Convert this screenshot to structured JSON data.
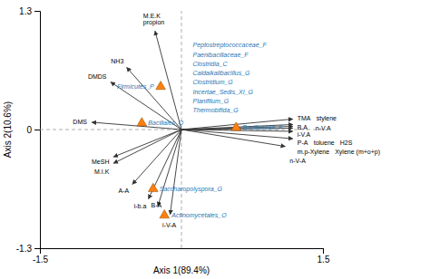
{
  "chart_data": {
    "type": "biplot",
    "xlabel": "Axis 1(89.4%)",
    "ylabel": "Axis 2(10.6%)",
    "xlim": [
      -1.5,
      1.5
    ],
    "ylim": [
      -1.3,
      1.3
    ],
    "xticks": [
      -1.5,
      1.5
    ],
    "yticks": [
      -1.3,
      0,
      1.3
    ],
    "crosshair": {
      "x": 0,
      "y": 0
    },
    "arrows": [
      {
        "labels": [
          "M.E.K\npropion"
        ],
        "x": -0.28,
        "y": 1.08
      },
      {
        "labels": [
          "NH3"
        ],
        "x": -0.58,
        "y": 0.68
      },
      {
        "labels": [
          "DMDS"
        ],
        "x": -0.75,
        "y": 0.52
      },
      {
        "labels": [
          "DMS"
        ],
        "x": -0.95,
        "y": 0.08
      },
      {
        "labels": [
          "MeSH"
        ],
        "x": -0.72,
        "y": -0.3
      },
      {
        "labels": [
          "M.I.K"
        ],
        "x": -0.72,
        "y": -0.37
      },
      {
        "labels": [
          "A-A"
        ],
        "x": -0.52,
        "y": -0.6
      },
      {
        "labels": [
          "i-b.a"
        ],
        "x": -0.35,
        "y": -0.76
      },
      {
        "labels": [
          "B-A"
        ],
        "x": -0.25,
        "y": -0.84
      },
      {
        "labels": [
          "i-V-A"
        ],
        "x": -0.12,
        "y": -0.93
      },
      {
        "labels": [
          "TMA",
          "stylene"
        ],
        "x": 1.18,
        "y": 0.115
      },
      {
        "labels": [
          "B.A"
        ],
        "x": 1.18,
        "y": 0.055
      },
      {
        "labels": [
          "i-V.A"
        ],
        "x": 1.18,
        "y": 0.035
      },
      {
        "labels": [
          "n-V.A"
        ],
        "x": 1.18,
        "y": 0.015
      },
      {
        "labels": [
          "P-A",
          "toluene",
          "H2S"
        ],
        "x": 1.18,
        "y": -0.02
      },
      {
        "labels": [
          "m.p-Xylene",
          "Xylene (m+o+p)"
        ],
        "x": 1.18,
        "y": -0.1
      },
      {
        "labels": [
          "n-V-A"
        ],
        "x": 1.1,
        "y": -0.185
      }
    ],
    "triangles": [
      {
        "label": "Firmicutes_P",
        "x": -0.22,
        "y": 0.47
      },
      {
        "label": "Bacillales_O",
        "x": -0.42,
        "y": 0.07
      },
      {
        "label": "Saccharopolyspora_G",
        "x": -0.3,
        "y": -0.65
      },
      {
        "label": "Actinomycetales_O",
        "x": -0.18,
        "y": -0.94
      },
      {
        "label": "Bacillaceae_F",
        "x": 0.58,
        "y": 0.02
      }
    ],
    "taxa": [
      {
        "label": "Peptostreptococcaceae_F",
        "x": 0.12,
        "y": 0.92
      },
      {
        "label": "Paenibacillaceae_F",
        "x": 0.12,
        "y": 0.81
      },
      {
        "label": "Clostridia_C",
        "x": 0.12,
        "y": 0.71
      },
      {
        "label": "Caldaikalibacillus_G",
        "x": 0.12,
        "y": 0.61
      },
      {
        "label": "Clostridium_G",
        "x": 0.12,
        "y": 0.51
      },
      {
        "label": "Incertae_Sedis_XI_G",
        "x": 0.12,
        "y": 0.41
      },
      {
        "label": "Planifilum_G",
        "x": 0.12,
        "y": 0.31
      },
      {
        "label": "Thermobifida_G",
        "x": 0.12,
        "y": 0.21
      }
    ]
  }
}
